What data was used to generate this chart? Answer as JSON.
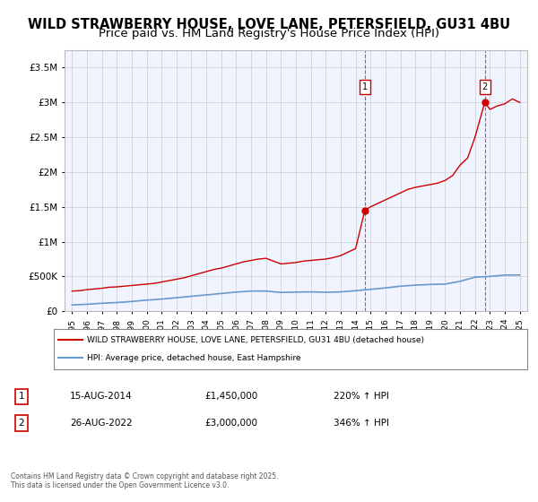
{
  "title1": "WILD STRAWBERRY HOUSE, LOVE LANE, PETERSFIELD, GU31 4BU",
  "title2": "Price paid vs. HM Land Registry's House Price Index (HPI)",
  "title1_fontsize": 10.5,
  "title2_fontsize": 9.5,
  "ylabel": "",
  "xlabel": "",
  "ylim": [
    0,
    3750000
  ],
  "xlim": [
    1994.5,
    2025.5
  ],
  "yticks": [
    0,
    500000,
    1000000,
    1500000,
    2000000,
    2500000,
    3000000,
    3500000
  ],
  "ytick_labels": [
    "£0",
    "£500K",
    "£1M",
    "£1.5M",
    "£2M",
    "£2.5M",
    "£3M",
    "£3.5M"
  ],
  "xticks": [
    1995,
    1996,
    1997,
    1998,
    1999,
    2000,
    2001,
    2002,
    2003,
    2004,
    2005,
    2006,
    2007,
    2008,
    2009,
    2010,
    2011,
    2012,
    2013,
    2014,
    2015,
    2016,
    2017,
    2018,
    2019,
    2020,
    2021,
    2022,
    2023,
    2024,
    2025
  ],
  "bg_color": "#f0f4ff",
  "plot_bg_color": "#f0f4ff",
  "grid_color": "#cccccc",
  "red_line_color": "#cc0000",
  "blue_line_color": "#6699cc",
  "marker1_x": 2014.622,
  "marker1_y": 1450000,
  "marker2_x": 2022.653,
  "marker2_y": 3000000,
  "marker1_label": "1",
  "marker2_label": "2",
  "legend_line1": "WILD STRAWBERRY HOUSE, LOVE LANE, PETERSFIELD, GU31 4BU (detached house)",
  "legend_line2": "HPI: Average price, detached house, East Hampshire",
  "annotation1_num": "1",
  "annotation1_date": "15-AUG-2014",
  "annotation1_price": "£1,450,000",
  "annotation1_hpi": "220% ↑ HPI",
  "annotation2_num": "2",
  "annotation2_date": "26-AUG-2022",
  "annotation2_price": "£3,000,000",
  "annotation2_hpi": "346% ↑ HPI",
  "footer": "Contains HM Land Registry data © Crown copyright and database right 2025.\nThis data is licensed under the Open Government Licence v3.0.",
  "red_x": [
    1995,
    1995.5,
    1996,
    1996.5,
    1997,
    1997.5,
    1998,
    1998.5,
    1999,
    1999.5,
    2000,
    2000.5,
    2001,
    2001.5,
    2002,
    2002.5,
    2003,
    2003.5,
    2004,
    2004.5,
    2005,
    2005.5,
    2006,
    2006.5,
    2007,
    2007.5,
    2008,
    2008.5,
    2009,
    2009.5,
    2010,
    2010.5,
    2011,
    2011.5,
    2012,
    2012.5,
    2013,
    2013.5,
    2014,
    2014.622,
    2015,
    2015.5,
    2016,
    2016.5,
    2017,
    2017.5,
    2018,
    2018.5,
    2019,
    2019.5,
    2020,
    2020.5,
    2021,
    2021.5,
    2022,
    2022.653,
    2023,
    2023.5,
    2024,
    2024.5,
    2025
  ],
  "red_y": [
    290000,
    295000,
    310000,
    320000,
    330000,
    345000,
    350000,
    360000,
    370000,
    380000,
    390000,
    400000,
    420000,
    440000,
    460000,
    480000,
    510000,
    540000,
    570000,
    600000,
    620000,
    650000,
    680000,
    710000,
    730000,
    750000,
    760000,
    720000,
    680000,
    690000,
    700000,
    720000,
    730000,
    740000,
    750000,
    770000,
    800000,
    850000,
    900000,
    1450000,
    1500000,
    1550000,
    1600000,
    1650000,
    1700000,
    1750000,
    1780000,
    1800000,
    1820000,
    1840000,
    1880000,
    1950000,
    2100000,
    2200000,
    2500000,
    3000000,
    2900000,
    2950000,
    2980000,
    3050000,
    3000000
  ],
  "blue_x": [
    1995,
    1996,
    1997,
    1998,
    1999,
    2000,
    2001,
    2002,
    2003,
    2004,
    2005,
    2006,
    2007,
    2008,
    2009,
    2010,
    2011,
    2012,
    2013,
    2014,
    2015,
    2016,
    2017,
    2018,
    2019,
    2020,
    2021,
    2022,
    2023,
    2024,
    2025
  ],
  "blue_y": [
    90000,
    100000,
    115000,
    125000,
    140000,
    160000,
    175000,
    195000,
    215000,
    235000,
    255000,
    275000,
    290000,
    290000,
    270000,
    275000,
    278000,
    272000,
    278000,
    295000,
    315000,
    335000,
    360000,
    375000,
    385000,
    390000,
    430000,
    490000,
    500000,
    520000,
    520000
  ]
}
